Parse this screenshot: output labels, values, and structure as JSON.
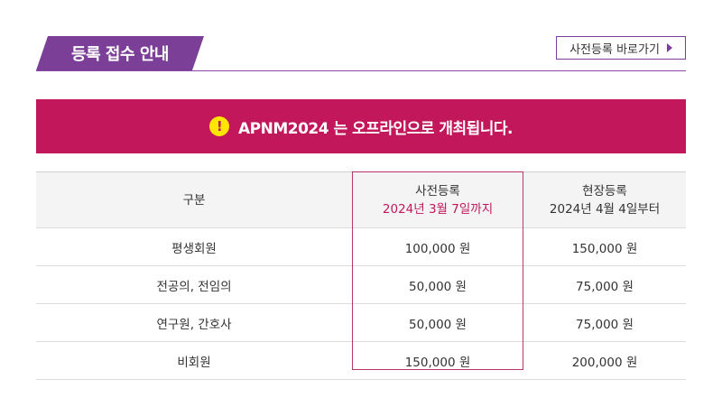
{
  "header": {
    "title": "등록 접수 안내",
    "prereg_link": "사전등록 바로가기"
  },
  "banner": {
    "icon_glyph": "!",
    "text": "APNM2024 는 오프라인으로 개최됩니다."
  },
  "table": {
    "headers": [
      {
        "line1": "구분",
        "line2": ""
      },
      {
        "line1": "사전등록",
        "line2": "2024년 3월 7일까지"
      },
      {
        "line1": "현장등록",
        "line2": "2024년 4월 4일부터"
      }
    ],
    "rows": [
      {
        "category": "평생회원",
        "pre": "100,000 원",
        "onsite": "150,000 원"
      },
      {
        "category": "전공의, 전임의",
        "pre": "50,000 원",
        "onsite": "75,000 원"
      },
      {
        "category": "연구원, 간호사",
        "pre": "50,000 원",
        "onsite": "75,000 원"
      },
      {
        "category": "비회원",
        "pre": "150,000 원",
        "onsite": "200,000 원"
      }
    ]
  },
  "colors": {
    "purple": "#7b3f98",
    "magenta": "#c2185b",
    "yellow": "#ffe600"
  }
}
